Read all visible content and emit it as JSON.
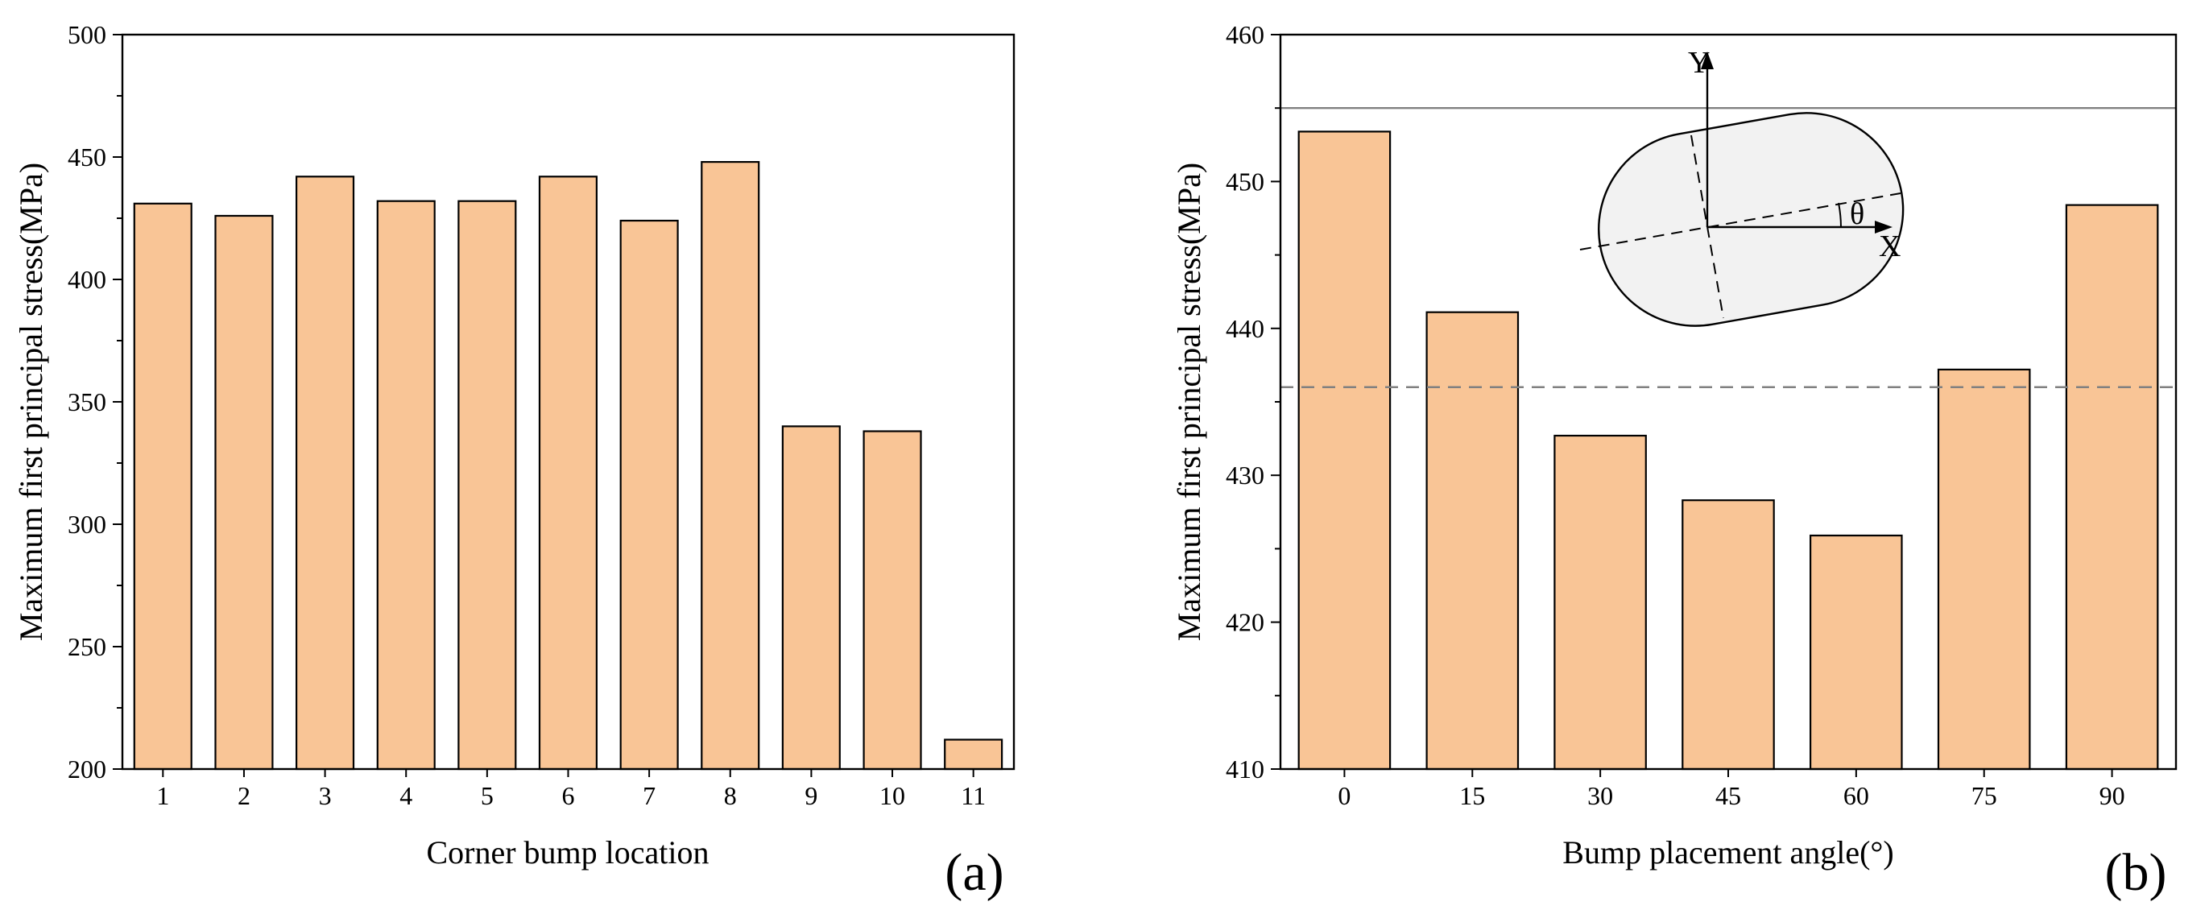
{
  "chart_data": [
    {
      "panel": "(a)",
      "type": "bar",
      "xlabel": "Corner bump location",
      "ylabel": "Maximum first principal stress(MPa)",
      "categories": [
        "1",
        "2",
        "3",
        "4",
        "5",
        "6",
        "7",
        "8",
        "9",
        "10",
        "11"
      ],
      "values": [
        431,
        426,
        442,
        432,
        432,
        442,
        424,
        448,
        340,
        338,
        212
      ],
      "ylim": [
        200,
        500
      ],
      "yticks": [
        200,
        250,
        300,
        350,
        400,
        450,
        500
      ],
      "bar_color": "#F9C596"
    },
    {
      "panel": "(b)",
      "type": "bar",
      "xlabel": "Bump placement angle(°)",
      "ylabel": "Maximum first principal stress(MPa)",
      "categories": [
        "0",
        "15",
        "30",
        "45",
        "60",
        "75",
        "90"
      ],
      "values": [
        453.4,
        441.1,
        432.7,
        428.3,
        425.9,
        437.2,
        448.4
      ],
      "ylim": [
        410,
        460
      ],
      "yticks": [
        410,
        420,
        430,
        440,
        450,
        460
      ],
      "reference_lines": [
        {
          "value": 455,
          "style": "solid",
          "color": "#808080"
        },
        {
          "value": 436,
          "style": "dashed",
          "color": "#808080"
        }
      ],
      "bar_color": "#F9C596",
      "inset": {
        "y_label": "Y",
        "x_label": "X",
        "angle_label": "θ"
      }
    }
  ]
}
